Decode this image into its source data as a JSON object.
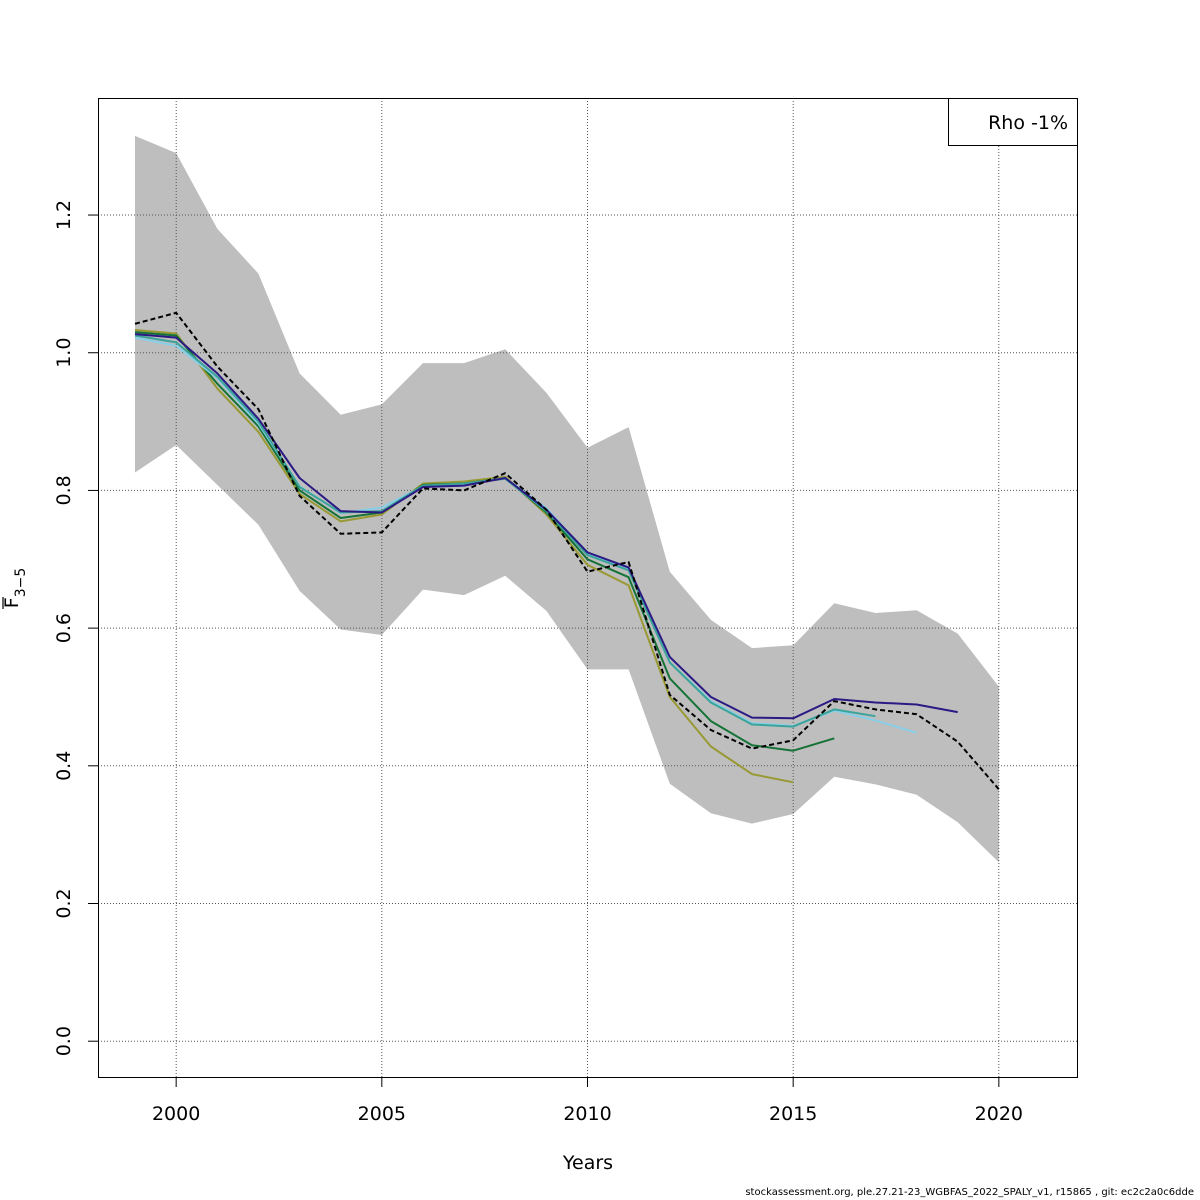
{
  "chart_data": {
    "type": "line",
    "xlabel": "Years",
    "ylabel_main": "F",
    "ylabel_sub": "3−5",
    "legend": "Rho -1%",
    "xlim": [
      1998.1,
      2021.9
    ],
    "ylim": [
      -0.052,
      1.37
    ],
    "x_ticks": [
      2000,
      2005,
      2010,
      2015,
      2020
    ],
    "y_ticks": [
      0.0,
      0.2,
      0.4,
      0.6,
      0.8,
      1.0,
      1.2
    ],
    "y_tick_labels": [
      "0.0",
      "0.2",
      "0.4",
      "0.6",
      "0.8",
      "1.0",
      "1.2"
    ],
    "grid": true,
    "confidence_band": {
      "color": "#bebebe",
      "x": [
        1999,
        2000,
        2001,
        2002,
        2003,
        2004,
        2005,
        2006,
        2007,
        2008,
        2009,
        2010,
        2011,
        2012,
        2013,
        2014,
        2015,
        2016,
        2017,
        2018,
        2019,
        2020
      ],
      "upper": [
        1.315,
        1.29,
        1.18,
        1.115,
        0.97,
        0.91,
        0.925,
        0.985,
        0.985,
        1.005,
        0.942,
        0.862,
        0.892,
        0.682,
        0.612,
        0.571,
        0.575,
        0.636,
        0.622,
        0.626,
        0.592,
        0.515
      ],
      "lower": [
        0.826,
        0.866,
        0.808,
        0.75,
        0.654,
        0.598,
        0.59,
        0.656,
        0.648,
        0.676,
        0.625,
        0.54,
        0.54,
        0.374,
        0.331,
        0.316,
        0.33,
        0.384,
        0.373,
        0.358,
        0.318,
        0.26
      ]
    },
    "series": [
      {
        "color": "#000000",
        "dashed": true,
        "x": [
          1999,
          2000,
          2001,
          2002,
          2003,
          2004,
          2005,
          2006,
          2007,
          2008,
          2009,
          2010,
          2011,
          2012,
          2013,
          2014,
          2015,
          2016,
          2017,
          2018,
          2019,
          2020
        ],
        "values": [
          1.042,
          1.058,
          0.98,
          0.918,
          0.792,
          0.737,
          0.739,
          0.803,
          0.8,
          0.825,
          0.772,
          0.682,
          0.696,
          0.503,
          0.452,
          0.425,
          0.437,
          0.494,
          0.482,
          0.475,
          0.435,
          0.366
        ]
      },
      {
        "color": "#2b1a84",
        "dashed": false,
        "x": [
          1999,
          2000,
          2001,
          2002,
          2003,
          2004,
          2005,
          2006,
          2007,
          2008,
          2009,
          2010,
          2011,
          2012,
          2013,
          2014,
          2015,
          2016,
          2017,
          2018,
          2019
        ],
        "values": [
          1.027,
          1.022,
          0.97,
          0.904,
          0.818,
          0.77,
          0.768,
          0.805,
          0.807,
          0.818,
          0.772,
          0.71,
          0.688,
          0.558,
          0.5,
          0.47,
          0.469,
          0.497,
          0.492,
          0.489,
          0.478
        ]
      },
      {
        "color": "#3aa39a",
        "dashed": false,
        "x": [
          1999,
          2000,
          2001,
          2002,
          2003,
          2004,
          2005,
          2006,
          2007,
          2008,
          2009,
          2010,
          2011,
          2012,
          2013,
          2014,
          2015,
          2016,
          2017
        ],
        "values": [
          1.025,
          1.015,
          0.965,
          0.9,
          0.805,
          0.768,
          0.77,
          0.807,
          0.81,
          0.817,
          0.77,
          0.706,
          0.684,
          0.55,
          0.492,
          0.46,
          0.457,
          0.482,
          0.472
        ]
      },
      {
        "color": "#87cfe8",
        "dashed": false,
        "x": [
          1999,
          2000,
          2001,
          2002,
          2003,
          2004,
          2005,
          2006,
          2007,
          2008,
          2009,
          2010,
          2011,
          2012,
          2013,
          2014,
          2015,
          2016,
          2017,
          2018
        ],
        "values": [
          1.022,
          1.01,
          0.963,
          0.897,
          0.806,
          0.767,
          0.775,
          0.806,
          0.809,
          0.818,
          0.774,
          0.708,
          0.686,
          0.55,
          0.494,
          0.462,
          0.458,
          0.48,
          0.466,
          0.448
        ]
      },
      {
        "color": "#157337",
        "dashed": false,
        "x": [
          1999,
          2000,
          2001,
          2002,
          2003,
          2004,
          2005,
          2006,
          2007,
          2008,
          2009,
          2010,
          2011,
          2012,
          2013,
          2014,
          2015,
          2016
        ],
        "values": [
          1.03,
          1.025,
          0.955,
          0.893,
          0.8,
          0.76,
          0.768,
          0.808,
          0.81,
          0.818,
          0.768,
          0.7,
          0.674,
          0.527,
          0.465,
          0.43,
          0.422,
          0.44
        ]
      },
      {
        "color": "#999933",
        "dashed": false,
        "x": [
          1999,
          2000,
          2001,
          2002,
          2003,
          2004,
          2005,
          2006,
          2007,
          2008,
          2009,
          2010,
          2011,
          2012,
          2013,
          2014,
          2015
        ],
        "values": [
          1.033,
          1.028,
          0.948,
          0.885,
          0.795,
          0.755,
          0.765,
          0.81,
          0.813,
          0.82,
          0.765,
          0.692,
          0.662,
          0.5,
          0.428,
          0.388,
          0.376
        ]
      }
    ]
  },
  "footer": "stockassessment.org, ple.27.21-23_WGBFAS_2022_SPALY_v1, r15865 , git: ec2c2a0c6dde"
}
